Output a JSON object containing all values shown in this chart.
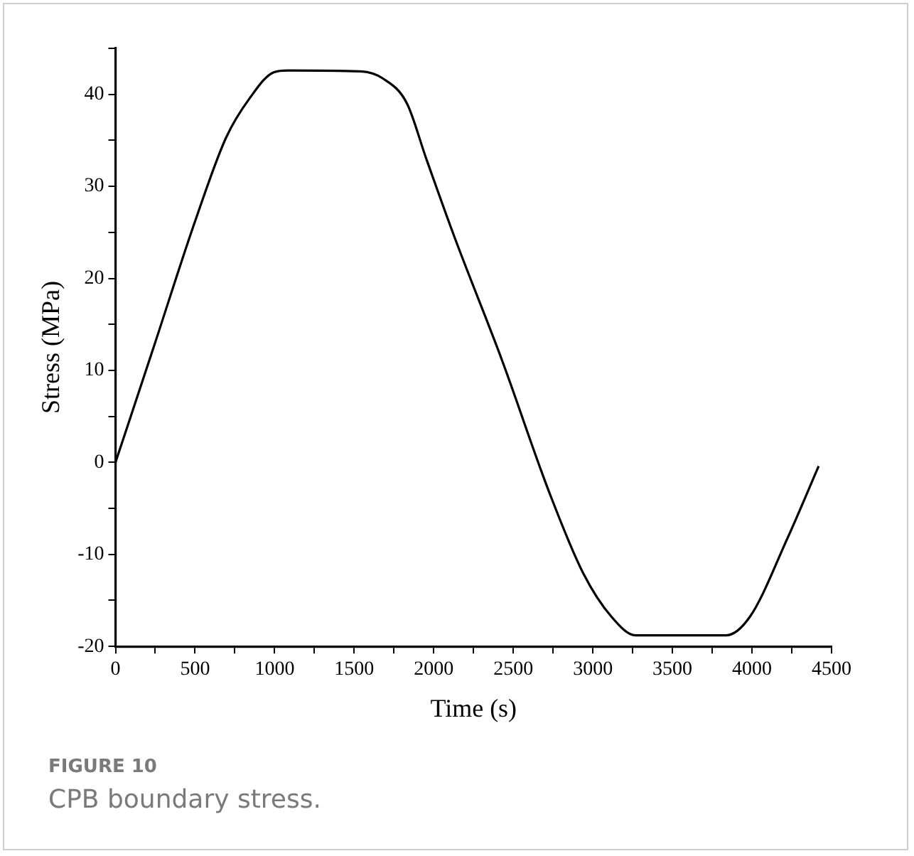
{
  "chart_data": {
    "type": "line",
    "xlabel": "Time (s)",
    "ylabel": "Stress (MPa)",
    "annotations": [
      "FIGURE 10",
      "CPB boundary stress."
    ],
    "x": [
      0,
      245,
      500,
      695,
      844,
      994,
      1084,
      1533,
      1683,
      1832,
      1951,
      2130,
      2429,
      2729,
      2938,
      3118,
      3268,
      3836,
      3986,
      4224,
      4419
    ],
    "series": [
      {
        "color": "#000000",
        "values": [
          0,
          12.8,
          26.2,
          35.3,
          39.6,
          42.4,
          42.6,
          42.5,
          41.7,
          39.0,
          33.1,
          24.5,
          11.1,
          -3.4,
          -12.0,
          -16.8,
          -18.8,
          -18.8,
          -16.8,
          -8.2,
          -0.4
        ]
      }
    ],
    "xlim": [
      0,
      4500
    ],
    "ylim": [
      -20,
      45
    ],
    "xticks": [
      0,
      {
        "value": 250,
        "label": null
      },
      500,
      {
        "value": 750,
        "label": null
      },
      1000,
      {
        "value": 1250,
        "label": null
      },
      1500,
      {
        "value": 1750,
        "label": null
      },
      2000,
      {
        "value": 2250,
        "label": null
      },
      2500,
      {
        "value": 2750,
        "label": null
      },
      3000,
      {
        "value": 3250,
        "label": null
      },
      3500,
      {
        "value": 3750,
        "label": null
      },
      4000,
      {
        "value": 4250,
        "label": null
      },
      4500
    ],
    "yticks": [
      -20,
      {
        "value": -15,
        "label": null
      },
      -10,
      {
        "value": -5,
        "label": null
      },
      0,
      {
        "value": 5,
        "label": null
      },
      10,
      {
        "value": 15,
        "label": null
      },
      20,
      {
        "value": 25,
        "label": null
      },
      30,
      {
        "value": 35,
        "label": null
      },
      40,
      {
        "value": 45,
        "label": null
      }
    ]
  }
}
